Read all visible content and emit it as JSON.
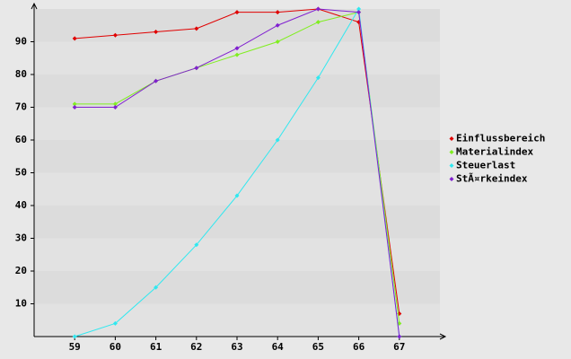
{
  "chart_data": {
    "type": "line",
    "x": [
      59,
      60,
      61,
      62,
      63,
      64,
      65,
      66,
      67
    ],
    "series": [
      {
        "name": "Einflussbereich",
        "color": "#e00000",
        "values": [
          91,
          92,
          93,
          94,
          99,
          99,
          100,
          96,
          7
        ]
      },
      {
        "name": "Materialindex",
        "color": "#80ee20",
        "values": [
          71,
          71,
          78,
          82,
          86,
          90,
          96,
          99,
          4
        ]
      },
      {
        "name": "Steuerlast",
        "color": "#30e8f0",
        "values": [
          0,
          4,
          15,
          28,
          43,
          60,
          79,
          100,
          0
        ]
      },
      {
        "name": "StÃ¤rkeindex",
        "color": "#8020d0",
        "values": [
          70,
          70,
          78,
          82,
          88,
          95,
          100,
          99,
          0
        ]
      }
    ],
    "xlim": [
      58,
      68
    ],
    "xticks": [
      59,
      60,
      61,
      62,
      63,
      64,
      65,
      66,
      67
    ],
    "ylim": [
      0,
      100
    ],
    "yticks": [
      10,
      20,
      30,
      40,
      50,
      60,
      70,
      80,
      90
    ],
    "grid": true,
    "legend": "right"
  }
}
